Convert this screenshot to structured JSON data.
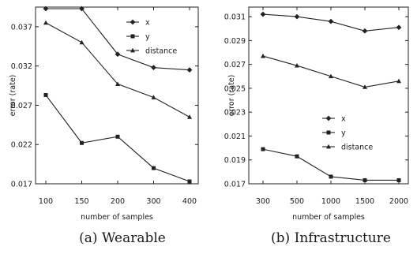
{
  "chart_data": [
    {
      "type": "line",
      "caption": "(a) Wearable",
      "xlabel": "number of samples",
      "ylabel": "error (rate)",
      "categories": [
        "100",
        "150",
        "200",
        "300",
        "400"
      ],
      "yticks": [
        "0.017",
        "0.022",
        "0.027",
        "0.032",
        "0.037"
      ],
      "ylim": [
        0.017,
        0.0395
      ],
      "legend_position": "top-right",
      "series": [
        {
          "name": "x",
          "marker": "diamond",
          "values": [
            0.0393,
            0.0393,
            0.0335,
            0.0318,
            0.0315
          ]
        },
        {
          "name": "y",
          "marker": "square",
          "values": [
            0.0283,
            0.0222,
            0.023,
            0.019,
            0.0173
          ]
        },
        {
          "name": "distance",
          "marker": "triangle",
          "values": [
            0.0375,
            0.035,
            0.0297,
            0.028,
            0.0255
          ]
        }
      ]
    },
    {
      "type": "line",
      "caption": "(b) Infrastructure",
      "xlabel": "number of samples",
      "ylabel": "error (rate)",
      "categories": [
        "300",
        "500",
        "1000",
        "1500",
        "2000"
      ],
      "yticks": [
        "0.017",
        "0.019",
        "0.021",
        "0.023",
        "0.025",
        "0.027",
        "0.029",
        "0.031"
      ],
      "ylim": [
        0.017,
        0.0318
      ],
      "legend_position": "center-right",
      "series": [
        {
          "name": "x",
          "marker": "diamond",
          "values": [
            0.0312,
            0.031,
            0.0306,
            0.0298,
            0.0301
          ]
        },
        {
          "name": "y",
          "marker": "square",
          "values": [
            0.0199,
            0.0193,
            0.0176,
            0.0173,
            0.0173
          ]
        },
        {
          "name": "distance",
          "marker": "triangle",
          "values": [
            0.0277,
            0.0269,
            0.026,
            0.0251,
            0.0256
          ]
        }
      ]
    }
  ]
}
